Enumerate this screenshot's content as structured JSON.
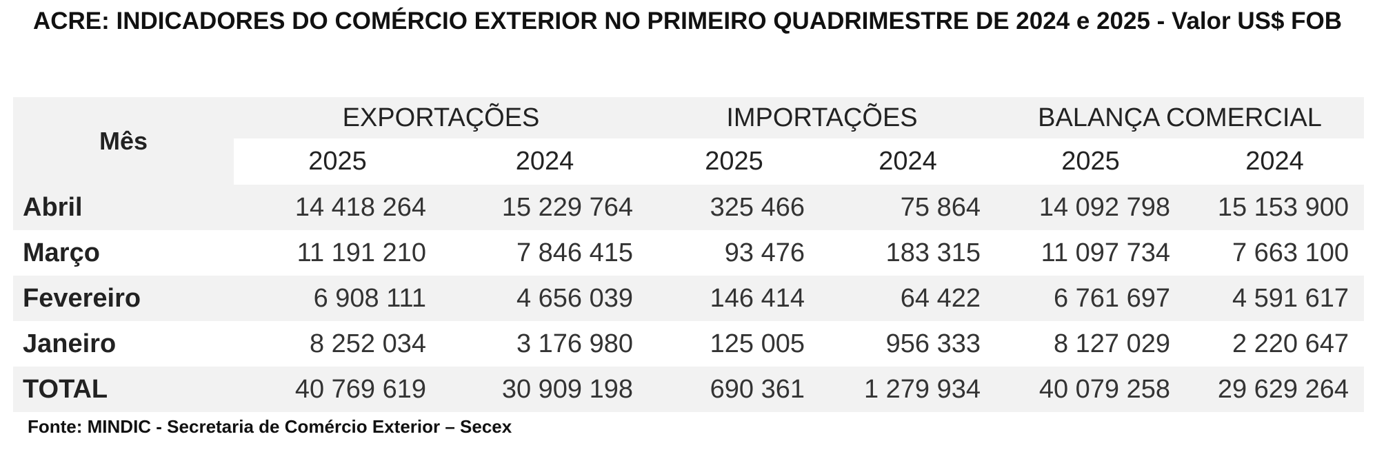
{
  "title": "ACRE: INDICADORES DO COMÉRCIO EXTERIOR NO PRIMEIRO QUADRIMESTRE DE 2024 e 2025 - Valor US$ FOB",
  "table": {
    "row_header": "Mês",
    "groups": [
      "EXPORTAÇÕES",
      "IMPORTAÇÕES",
      "BALANÇA COMERCIAL"
    ],
    "subheaders": [
      "2025",
      "2024",
      "2025",
      "2024",
      "2025",
      "2024"
    ],
    "rows": [
      [
        "Abril",
        "14 418 264",
        "15 229 764",
        "325 466",
        "75 864",
        "14 092 798",
        "15 153 900"
      ],
      [
        "Março",
        "11 191 210",
        "7 846 415",
        "93 476",
        "183 315",
        "11 097 734",
        "7 663 100"
      ],
      [
        "Fevereiro",
        "6 908 111",
        "4 656 039",
        "146 414",
        "64 422",
        "6 761 697",
        "4 591 617"
      ],
      [
        "Janeiro",
        "8 252 034",
        "3 176 980",
        "125 005",
        "956 333",
        "8 127 029",
        "2 220 647"
      ],
      [
        "TOTAL",
        "40 769 619",
        "30 909 198",
        "690 361",
        "1 279 934",
        "40 079 258",
        "29 629 264"
      ]
    ]
  },
  "source": "Fonte: MINDIC - Secretaria de Comércio Exterior – Secex"
}
